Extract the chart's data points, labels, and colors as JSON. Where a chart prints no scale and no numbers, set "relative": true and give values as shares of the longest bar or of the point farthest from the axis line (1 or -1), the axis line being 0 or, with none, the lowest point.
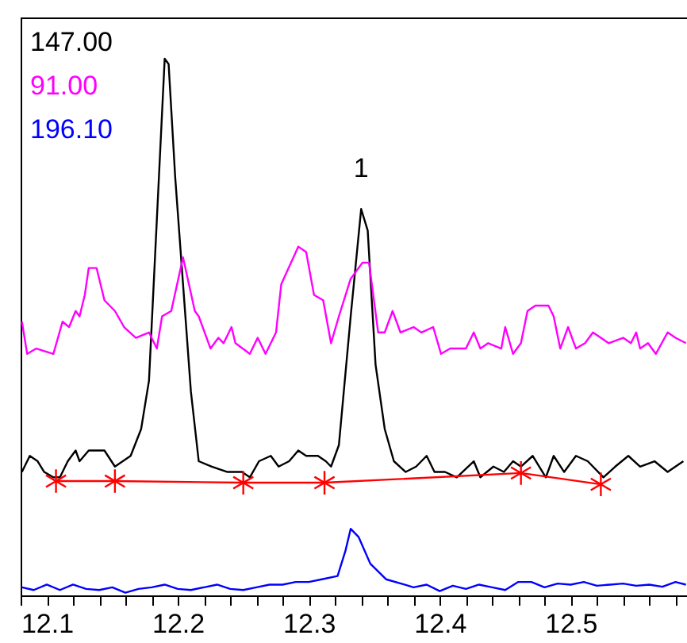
{
  "chart_data": {
    "type": "line",
    "relative": true,
    "xlim": [
      12.08,
      12.59
    ],
    "tick_labels": "x",
    "legend": "top left",
    "xticks": [
      {
        "value": 12.08,
        "label": null
      },
      12.1,
      {
        "value": 12.12,
        "label": null
      },
      {
        "value": 12.14,
        "label": null
      },
      {
        "value": 12.16,
        "label": null
      },
      {
        "value": 12.18,
        "label": null
      },
      12.2,
      {
        "value": 12.22,
        "label": null
      },
      {
        "value": 12.24,
        "label": null
      },
      {
        "value": 12.26,
        "label": null
      },
      {
        "value": 12.28,
        "label": null
      },
      12.3,
      {
        "value": 12.32,
        "label": null
      },
      {
        "value": 12.34,
        "label": null
      },
      {
        "value": 12.36,
        "label": null
      },
      {
        "value": 12.38,
        "label": null
      },
      12.4,
      {
        "value": 12.42,
        "label": null
      },
      {
        "value": 12.44,
        "label": null
      },
      {
        "value": 12.46,
        "label": null
      },
      {
        "value": 12.48,
        "label": null
      },
      12.5,
      {
        "value": 12.52,
        "label": null
      },
      {
        "value": 12.54,
        "label": null
      },
      {
        "value": 12.56,
        "label": null
      },
      {
        "value": 12.58,
        "label": null
      }
    ],
    "annotations": [
      {
        "text": "1",
        "x": 12.34,
        "y": 0.72
      }
    ],
    "series": [
      {
        "name": "147.00",
        "color": "#000000",
        "x": [
          12.081,
          12.087,
          12.093,
          12.098,
          12.105,
          12.11,
          12.116,
          12.122,
          12.125,
          12.132,
          12.138,
          12.144,
          12.152,
          12.164,
          12.172,
          12.178,
          12.184,
          12.19,
          12.193,
          12.198,
          12.204,
          12.21,
          12.216,
          12.226,
          12.238,
          12.249,
          12.255,
          12.262,
          12.271,
          12.277,
          12.285,
          12.292,
          12.298,
          12.307,
          12.313,
          12.317,
          12.323,
          12.332,
          12.34,
          12.345,
          12.351,
          12.358,
          12.365,
          12.374,
          12.382,
          12.39,
          12.396,
          12.404,
          12.413,
          12.426,
          12.431,
          12.441,
          12.449,
          12.456,
          12.462,
          12.471,
          12.481,
          12.487,
          12.495,
          12.504,
          12.513,
          12.525,
          12.534,
          12.544,
          12.553,
          12.564,
          12.574,
          12.586
        ],
        "values": [
          0.23,
          0.26,
          0.25,
          0.23,
          0.22,
          0.22,
          0.25,
          0.27,
          0.25,
          0.27,
          0.27,
          0.27,
          0.24,
          0.26,
          0.31,
          0.4,
          0.7,
          1,
          0.99,
          0.78,
          0.58,
          0.38,
          0.25,
          0.24,
          0.23,
          0.23,
          0.22,
          0.25,
          0.26,
          0.24,
          0.25,
          0.27,
          0.26,
          0.26,
          0.25,
          0.24,
          0.28,
          0.52,
          0.72,
          0.68,
          0.43,
          0.31,
          0.25,
          0.23,
          0.24,
          0.26,
          0.23,
          0.23,
          0.22,
          0.25,
          0.22,
          0.24,
          0.23,
          0.25,
          0.24,
          0.26,
          0.22,
          0.26,
          0.23,
          0.26,
          0.25,
          0.22,
          0.24,
          0.26,
          0.24,
          0.25,
          0.23,
          0.25
        ]
      },
      {
        "name": "91.00",
        "color": "#ff00ff",
        "x": [
          12.081,
          12.085,
          12.092,
          12.105,
          12.112,
          12.117,
          12.122,
          12.125,
          12.129,
          12.132,
          12.138,
          12.144,
          12.152,
          12.159,
          12.168,
          12.178,
          12.184,
          12.188,
          12.195,
          12.204,
          12.213,
          12.216,
          12.225,
          12.231,
          12.235,
          12.241,
          12.244,
          12.255,
          12.261,
          12.267,
          12.275,
          12.279,
          12.292,
          12.298,
          12.304,
          12.311,
          12.317,
          12.323,
          12.332,
          12.341,
          12.346,
          12.353,
          12.358,
          12.364,
          12.37,
          12.38,
          12.386,
          12.395,
          12.401,
          12.408,
          12.416,
          12.42,
          12.426,
          12.431,
          12.437,
          12.447,
          12.45,
          12.456,
          12.462,
          12.467,
          12.473,
          12.479,
          12.483,
          12.487,
          12.492,
          12.498,
          12.504,
          12.511,
          12.517,
          12.529,
          12.54,
          12.546,
          12.55,
          12.553,
          12.559,
          12.565,
          12.574,
          12.58,
          12.588
        ],
        "values": [
          0.51,
          0.45,
          0.46,
          0.45,
          0.51,
          0.5,
          0.53,
          0.52,
          0.56,
          0.61,
          0.61,
          0.55,
          0.53,
          0.5,
          0.48,
          0.49,
          0.46,
          0.52,
          0.53,
          0.63,
          0.53,
          0.52,
          0.46,
          0.48,
          0.47,
          0.5,
          0.47,
          0.45,
          0.48,
          0.45,
          0.49,
          0.58,
          0.65,
          0.64,
          0.56,
          0.55,
          0.47,
          0.52,
          0.59,
          0.62,
          0.62,
          0.49,
          0.49,
          0.53,
          0.49,
          0.5,
          0.49,
          0.5,
          0.45,
          0.46,
          0.46,
          0.46,
          0.49,
          0.46,
          0.47,
          0.46,
          0.5,
          0.45,
          0.47,
          0.53,
          0.54,
          0.54,
          0.54,
          0.52,
          0.46,
          0.5,
          0.46,
          0.47,
          0.49,
          0.47,
          0.48,
          0.47,
          0.49,
          0.46,
          0.47,
          0.45,
          0.49,
          0.48,
          0.47
        ]
      },
      {
        "name": "196.10",
        "color": "#0000ff",
        "x": [
          12.081,
          12.09,
          12.1,
          12.11,
          12.12,
          12.13,
          12.14,
          12.15,
          12.16,
          12.17,
          12.18,
          12.19,
          12.2,
          12.21,
          12.22,
          12.23,
          12.24,
          12.25,
          12.26,
          12.27,
          12.28,
          12.29,
          12.3,
          12.31,
          12.322,
          12.328,
          12.332,
          12.338,
          12.347,
          12.359,
          12.372,
          12.38,
          12.39,
          12.4,
          12.41,
          12.42,
          12.43,
          12.44,
          12.45,
          12.46,
          12.47,
          12.48,
          12.49,
          12.5,
          12.51,
          12.52,
          12.53,
          12.54,
          12.55,
          12.56,
          12.57,
          12.58,
          12.588
        ],
        "values": [
          0.015,
          0.01,
          0.02,
          0.01,
          0.02,
          0.012,
          0.01,
          0.015,
          0.005,
          0.012,
          0.015,
          0.02,
          0.012,
          0.01,
          0.015,
          0.02,
          0.012,
          0.01,
          0.015,
          0.02,
          0.02,
          0.025,
          0.025,
          0.03,
          0.036,
          0.083,
          0.124,
          0.109,
          0.059,
          0.03,
          0.021,
          0.015,
          0.02,
          0.008,
          0.018,
          0.012,
          0.02,
          0.015,
          0.01,
          0.025,
          0.025,
          0.015,
          0.022,
          0.02,
          0.025,
          0.018,
          0.02,
          0.022,
          0.018,
          0.02,
          0.016,
          0.025,
          0.02
        ]
      },
      {
        "color": "#ff0000",
        "marker": "cross",
        "x": [
          12.107,
          12.152,
          12.25,
          12.312,
          12.462,
          12.523
        ],
        "values": [
          0.213,
          0.213,
          0.21,
          0.21,
          0.228,
          0.207
        ]
      }
    ]
  }
}
